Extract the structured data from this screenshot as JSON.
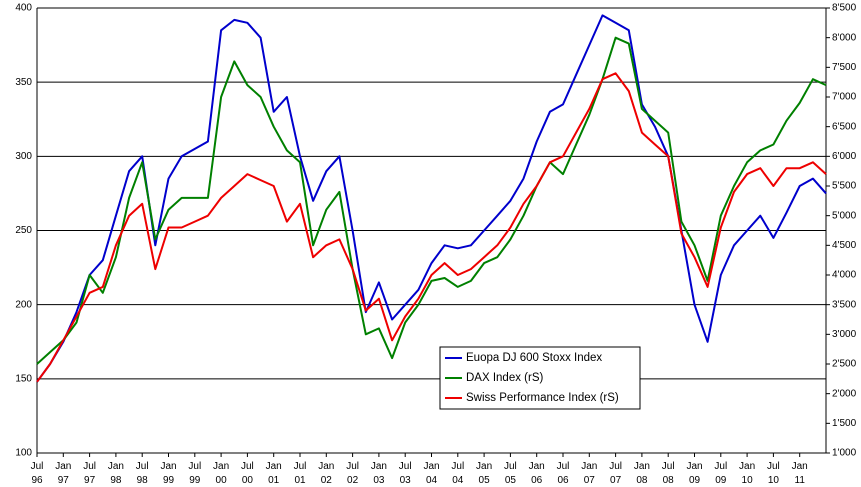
{
  "chart_data": {
    "type": "line",
    "categories": [
      "Jul 96",
      null,
      "Jan 97",
      null,
      "Jul 97",
      null,
      "Jan 98",
      null,
      "Jul 98",
      null,
      "Jan 99",
      null,
      "Jul 99",
      null,
      "Jan 00",
      null,
      "Jul 00",
      null,
      "Jan 01",
      null,
      "Jul 01",
      null,
      "Jan 02",
      null,
      "Jul 02",
      null,
      "Jan 03",
      null,
      "Jul 03",
      null,
      "Jan 04",
      null,
      "Jul 04",
      null,
      "Jan 05",
      null,
      "Jul 05",
      null,
      "Jan 06",
      null,
      "Jul 06",
      null,
      "Jan 07",
      null,
      "Jul 07",
      null,
      "Jan 08",
      null,
      "Jul 08",
      null,
      "Jan 09",
      null,
      "Jul 09",
      null,
      "Jan 10",
      null,
      "Jul 10",
      null,
      "Jan 11",
      null,
      null
    ],
    "series": [
      {
        "name": "Euopa DJ 600 Stoxx Index",
        "color": "#0000cc",
        "values": [
          148,
          160,
          175,
          195,
          220,
          230,
          260,
          290,
          300,
          240,
          285,
          300,
          305,
          310,
          385,
          392,
          390,
          380,
          330,
          340,
          300,
          270,
          290,
          300,
          250,
          195,
          215,
          190,
          200,
          210,
          228,
          240,
          238,
          240,
          250,
          260,
          270,
          285,
          310,
          330,
          335,
          355,
          375,
          395,
          390,
          385,
          335,
          320,
          300,
          250,
          200,
          175,
          220,
          240,
          250,
          260,
          245,
          262,
          280,
          285,
          275
        ]
      },
      {
        "name": "DAX Index (rS)",
        "color": "#008000",
        "axis": "y2",
        "values": [
          2500,
          2700,
          2900,
          3200,
          4000,
          3700,
          4300,
          5300,
          5900,
          4600,
          5100,
          5300,
          5300,
          5300,
          7000,
          7600,
          7200,
          7000,
          6500,
          6100,
          5900,
          4500,
          5100,
          5400,
          4100,
          3000,
          3100,
          2600,
          3200,
          3500,
          3900,
          3950,
          3800,
          3900,
          4200,
          4300,
          4600,
          5000,
          5500,
          5900,
          5700,
          6200,
          6700,
          7300,
          8000,
          7900,
          6800,
          6600,
          6400,
          4900,
          4500,
          3900,
          5000,
          5500,
          5900,
          6100,
          6200,
          6600,
          6900,
          7300,
          7200
        ]
      },
      {
        "name": "Swiss Performance Index (rS)",
        "color": "#ee0000",
        "axis": "y2",
        "values": [
          2200,
          2500,
          2900,
          3300,
          3700,
          3800,
          4500,
          5000,
          5200,
          4100,
          4800,
          4800,
          4900,
          5000,
          5300,
          5500,
          5700,
          5600,
          5500,
          4900,
          5200,
          4300,
          4500,
          4600,
          4100,
          3400,
          3600,
          2900,
          3300,
          3600,
          4000,
          4200,
          4000,
          4100,
          4300,
          4500,
          4800,
          5200,
          5500,
          5900,
          6000,
          6400,
          6800,
          7300,
          7400,
          7100,
          6400,
          6200,
          6000,
          4700,
          4300,
          3800,
          4800,
          5400,
          5700,
          5800,
          5500,
          5800,
          5800,
          5900,
          5700
        ]
      }
    ],
    "ylim": [
      100,
      400
    ],
    "yticks": [
      100,
      150,
      200,
      250,
      300,
      350,
      400
    ],
    "y2lim": [
      1000,
      8500
    ],
    "y2ticks": [
      {
        "value": 1000,
        "label": "1'000"
      },
      {
        "value": 1500,
        "label": "1'500"
      },
      {
        "value": 2000,
        "label": "2'000"
      },
      {
        "value": 2500,
        "label": "2'500"
      },
      {
        "value": 3000,
        "label": "3'000"
      },
      {
        "value": 3500,
        "label": "3'500"
      },
      {
        "value": 4000,
        "label": "4'000"
      },
      {
        "value": 4500,
        "label": "4'500"
      },
      {
        "value": 5000,
        "label": "5'000"
      },
      {
        "value": 5500,
        "label": "5'500"
      },
      {
        "value": 6000,
        "label": "6'000"
      },
      {
        "value": 6500,
        "label": "6'500"
      },
      {
        "value": 7000,
        "label": "7'000"
      },
      {
        "value": 7500,
        "label": "7'500"
      },
      {
        "value": 8000,
        "label": "8'000"
      },
      {
        "value": 8500,
        "label": "8'500"
      }
    ],
    "grid": true
  }
}
